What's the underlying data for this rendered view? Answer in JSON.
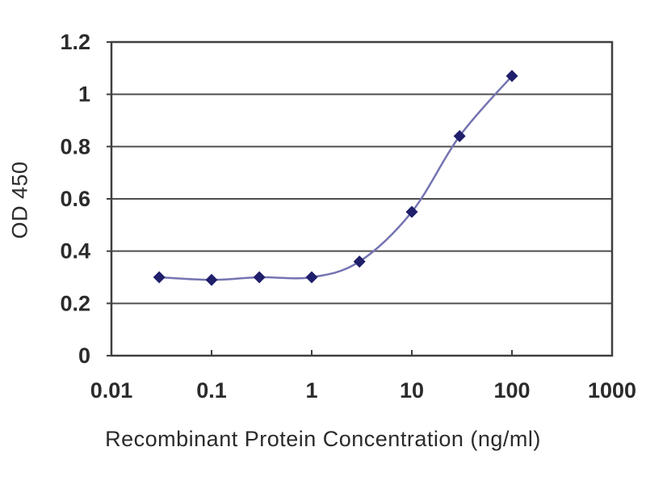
{
  "chart_data": {
    "type": "line",
    "subtype": "scatter-smooth-log-x",
    "title": "",
    "xlabel": "Recombinant Protein Concentration (ng/ml)",
    "ylabel": "OD 450",
    "x_scale": "log",
    "xlim": [
      0.01,
      1000
    ],
    "ylim": [
      0,
      1.2
    ],
    "grid": "horizontal",
    "legend_position": "none",
    "x_ticks": [
      {
        "value": 0.01,
        "label": "0.01"
      },
      {
        "value": 0.1,
        "label": "0.1"
      },
      {
        "value": 1,
        "label": "1"
      },
      {
        "value": 10,
        "label": "10"
      },
      {
        "value": 100,
        "label": "100"
      },
      {
        "value": 1000,
        "label": "1000"
      }
    ],
    "y_ticks": [
      {
        "value": 0,
        "label": "0"
      },
      {
        "value": 0.2,
        "label": "0.2"
      },
      {
        "value": 0.4,
        "label": "0.4"
      },
      {
        "value": 0.6,
        "label": "0.6"
      },
      {
        "value": 0.8,
        "label": "0.8"
      },
      {
        "value": 1,
        "label": "1"
      },
      {
        "value": 1.2,
        "label": "1.2"
      }
    ],
    "series": [
      {
        "name": "OD 450",
        "marker": "diamond",
        "x": [
          0.03,
          0.1,
          0.3,
          1,
          3,
          10,
          30,
          100
        ],
        "y": [
          0.3,
          0.29,
          0.3,
          0.3,
          0.36,
          0.55,
          0.84,
          1.07
        ]
      }
    ],
    "colors": {
      "line": "#7474b2",
      "marker": "#1f1f6b",
      "grid": "#4f4f4f",
      "axis": "#3f3f3f",
      "text": "#2b2b2b",
      "background": "#ffffff"
    }
  }
}
